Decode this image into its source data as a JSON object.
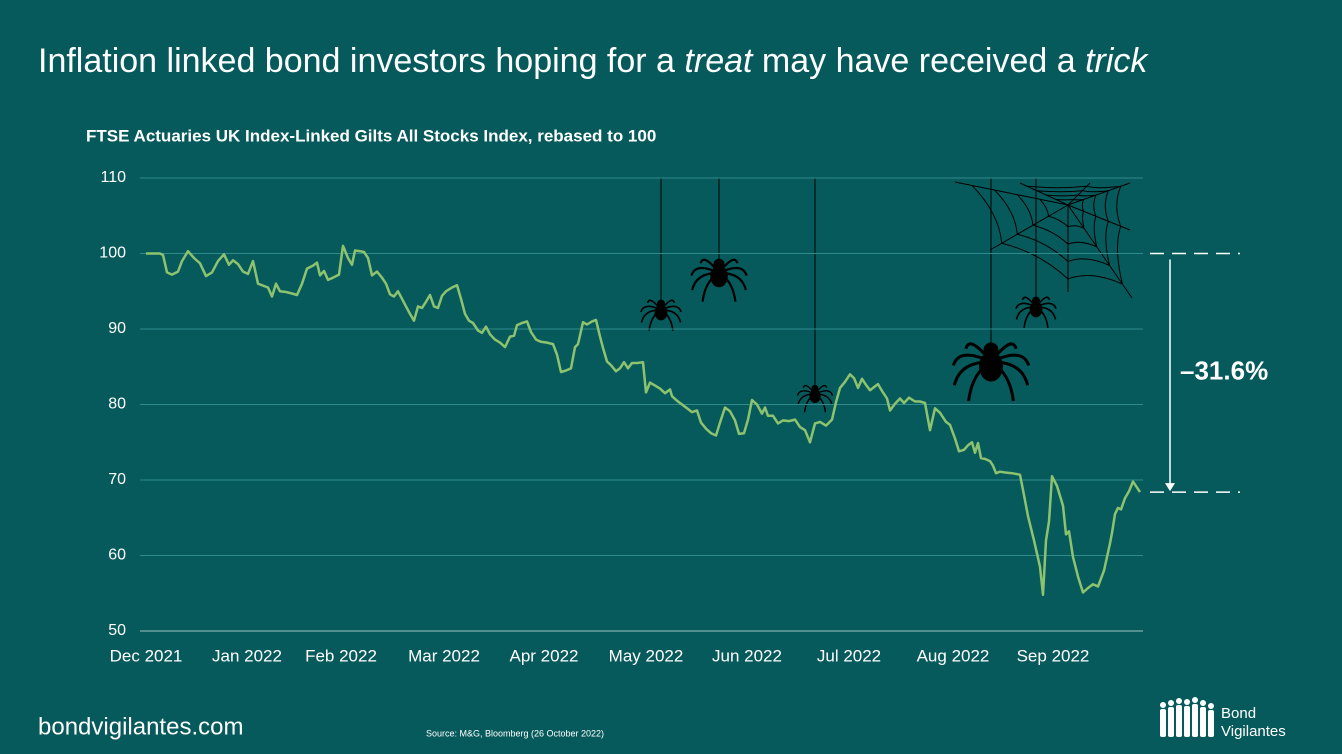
{
  "chart_data": {
    "type": "line",
    "title": [
      "Inflation linked bond investors hoping for a ",
      "treat",
      " may have received a ",
      "trick"
    ],
    "title_italic": [
      false,
      true,
      false,
      true
    ],
    "subtitle": "FTSE Actuaries UK Index-Linked Gilts All Stocks Index, rebased to 100",
    "color": "#8dc26f",
    "x": [
      0,
      0.14,
      0.17,
      0.21,
      0.26,
      0.32,
      0.36,
      0.42,
      0.48,
      0.54,
      0.6,
      0.66,
      0.72,
      0.78,
      0.83,
      0.87,
      0.92,
      0.97,
      1.02,
      1.07,
      1.12,
      1.18,
      1.22,
      1.26,
      1.3,
      1.34,
      1.4,
      1.46,
      1.51,
      1.56,
      1.61,
      1.67,
      1.71,
      1.74,
      1.78,
      1.82,
      1.87,
      1.93,
      1.97,
      2.02,
      2.06,
      2.09,
      2.14,
      2.18,
      2.22,
      2.26,
      2.31,
      2.36,
      2.4,
      2.44,
      2.48,
      2.52,
      2.56,
      2.6,
      2.64,
      2.68,
      2.72,
      2.76,
      2.8,
      2.84,
      2.88,
      2.92,
      2.96,
      3.0,
      3.06,
      3.11,
      3.15,
      3.19,
      3.23,
      3.27,
      3.32,
      3.36,
      3.4,
      3.44,
      3.49,
      3.54,
      3.59,
      3.64,
      3.68,
      3.71,
      3.76,
      3.81,
      3.85,
      3.9,
      3.95,
      4.01,
      4.07,
      4.11,
      4.15,
      4.2,
      4.25,
      4.29,
      4.32,
      4.37,
      4.41,
      4.46,
      4.5,
      4.54,
      4.57,
      4.61,
      4.65,
      4.7,
      4.74,
      4.78,
      4.82,
      4.86,
      4.91,
      4.97,
      5.0,
      5.04,
      5.09,
      5.14,
      5.19,
      5.24,
      5.26,
      5.31,
      5.36,
      5.41,
      5.46,
      5.51,
      5.55,
      5.6,
      5.65,
      5.7,
      5.74,
      5.79,
      5.84,
      5.89,
      5.93,
      5.98,
      6.02,
      6.06,
      6.11,
      6.16,
      6.19,
      6.22,
      6.27,
      6.32,
      6.37,
      6.43,
      6.49,
      6.54,
      6.59,
      6.64,
      6.69,
      6.74,
      6.8,
      6.86,
      6.9,
      6.94,
      6.99,
      7.04,
      7.08,
      7.12,
      7.16,
      7.2,
      7.24,
      7.28,
      7.32,
      7.36,
      7.41,
      7.44,
      7.49,
      7.54,
      7.58,
      7.63,
      7.69,
      7.74,
      7.79,
      7.84,
      7.89,
      7.94,
      8.0,
      8.04,
      8.09,
      8.13,
      8.18,
      8.22,
      8.26,
      8.29,
      8.32,
      8.35,
      8.39,
      8.44,
      8.47,
      8.5,
      8.54,
      8.59,
      8.66,
      8.74,
      8.78,
      8.82,
      8.88,
      8.94,
      8.97,
      9.0,
      9.03,
      9.06,
      9.11,
      9.17,
      9.2,
      9.23,
      9.27,
      9.32,
      9.37,
      9.42,
      9.47,
      9.52,
      9.58,
      9.64,
      9.66,
      9.69,
      9.72,
      9.75,
      9.79,
      9.83,
      9.87,
      9.91,
      9.94
    ],
    "values": [
      100,
      100,
      99.8,
      97.5,
      97.2,
      97.6,
      99,
      100.3,
      99.4,
      98.7,
      97,
      97.5,
      99,
      99.9,
      98.5,
      99.1,
      98.6,
      97.6,
      97.3,
      99,
      96,
      95.7,
      95.5,
      94.3,
      96,
      95,
      94.9,
      94.7,
      94.5,
      96,
      98,
      98.4,
      98.8,
      97.1,
      97.7,
      96.5,
      96.8,
      97.2,
      101,
      99.4,
      98.5,
      100.4,
      100.3,
      100.2,
      99.4,
      97.1,
      97.6,
      96.8,
      96,
      94.6,
      94.3,
      95,
      94,
      93,
      92,
      91.1,
      93,
      92.8,
      93.6,
      94.5,
      93,
      92.8,
      94.4,
      95,
      95.5,
      95.8,
      94,
      92,
      91.1,
      90.8,
      89.8,
      89.5,
      90.3,
      89.3,
      88.6,
      88.2,
      87.6,
      89,
      89.1,
      90.5,
      90.8,
      91,
      89.6,
      88.6,
      88.3,
      88.2,
      88,
      86.6,
      84.3,
      84.5,
      84.8,
      87.6,
      88,
      90.9,
      90.6,
      91,
      91.2,
      89,
      87.5,
      85.7,
      85.2,
      84.4,
      84.8,
      85.6,
      84.8,
      85.5,
      85.5,
      85.6,
      81.6,
      82.9,
      82.5,
      82.1,
      81.5,
      82,
      81.1,
      80.5,
      80,
      79.5,
      79,
      79.2,
      77.6,
      76.8,
      76.2,
      75.9,
      77.6,
      79.6,
      79.1,
      77.9,
      76.1,
      76.2,
      78,
      80.6,
      80,
      78.8,
      79.6,
      78.5,
      78.5,
      77.5,
      77.9,
      77.8,
      78,
      77,
      76.6,
      75,
      77.5,
      77.7,
      77.2,
      78,
      80.3,
      82.2,
      83,
      84,
      83.5,
      82.2,
      83.4,
      82.6,
      81.9,
      82.3,
      82.7,
      81.8,
      80.8,
      79.2,
      80.1,
      80.8,
      80.2,
      80.9,
      80.4,
      80.4,
      80.2,
      76.6,
      79.5,
      78.9,
      77.7,
      77.3,
      75.5,
      73.8,
      74,
      74.6,
      75,
      73.6,
      74.9,
      72.9,
      72.8,
      72.5,
      71.9,
      70.9,
      71.1,
      71,
      70.9,
      70.7,
      68,
      65.2,
      62,
      58.5,
      54.8,
      62,
      64.5,
      70.5,
      69.2,
      66.6,
      62.8,
      63.2,
      59.8,
      57.2,
      55.1,
      55.7,
      56.2,
      55.9,
      58,
      61.6,
      63,
      65.5,
      66.3,
      66.1,
      67.6,
      68.5,
      69.8,
      69,
      68.4
    ],
    "xlim": [
      0,
      9.97
    ],
    "xticks": [
      {
        "value": 0,
        "label": "Dec 2021"
      },
      {
        "value": 1.01,
        "label": "Jan 2022"
      },
      {
        "value": 1.95,
        "label": "Feb 2022"
      },
      {
        "value": 2.98,
        "label": "Mar 2022"
      },
      {
        "value": 3.98,
        "label": "Apr 2022"
      },
      {
        "value": 5.0,
        "label": "May 2022"
      },
      {
        "value": 6.01,
        "label": "Jun 2022"
      },
      {
        "value": 7.03,
        "label": "Jul 2022"
      },
      {
        "value": 8.07,
        "label": "Aug 2022"
      },
      {
        "value": 9.07,
        "label": "Sep 2022"
      }
    ],
    "ylim": [
      50,
      110
    ],
    "yticks": [
      50,
      60,
      70,
      80,
      90,
      100,
      110
    ],
    "grid": true,
    "annotation": {
      "label": "–31.6%",
      "from": 100,
      "to": 68.4
    }
  },
  "footer": {
    "site": "bondvigilantes.com",
    "source": "Source: M&G, Bloomberg (26 October 2022)",
    "logo": [
      "Bond",
      "Vigilantes"
    ]
  }
}
